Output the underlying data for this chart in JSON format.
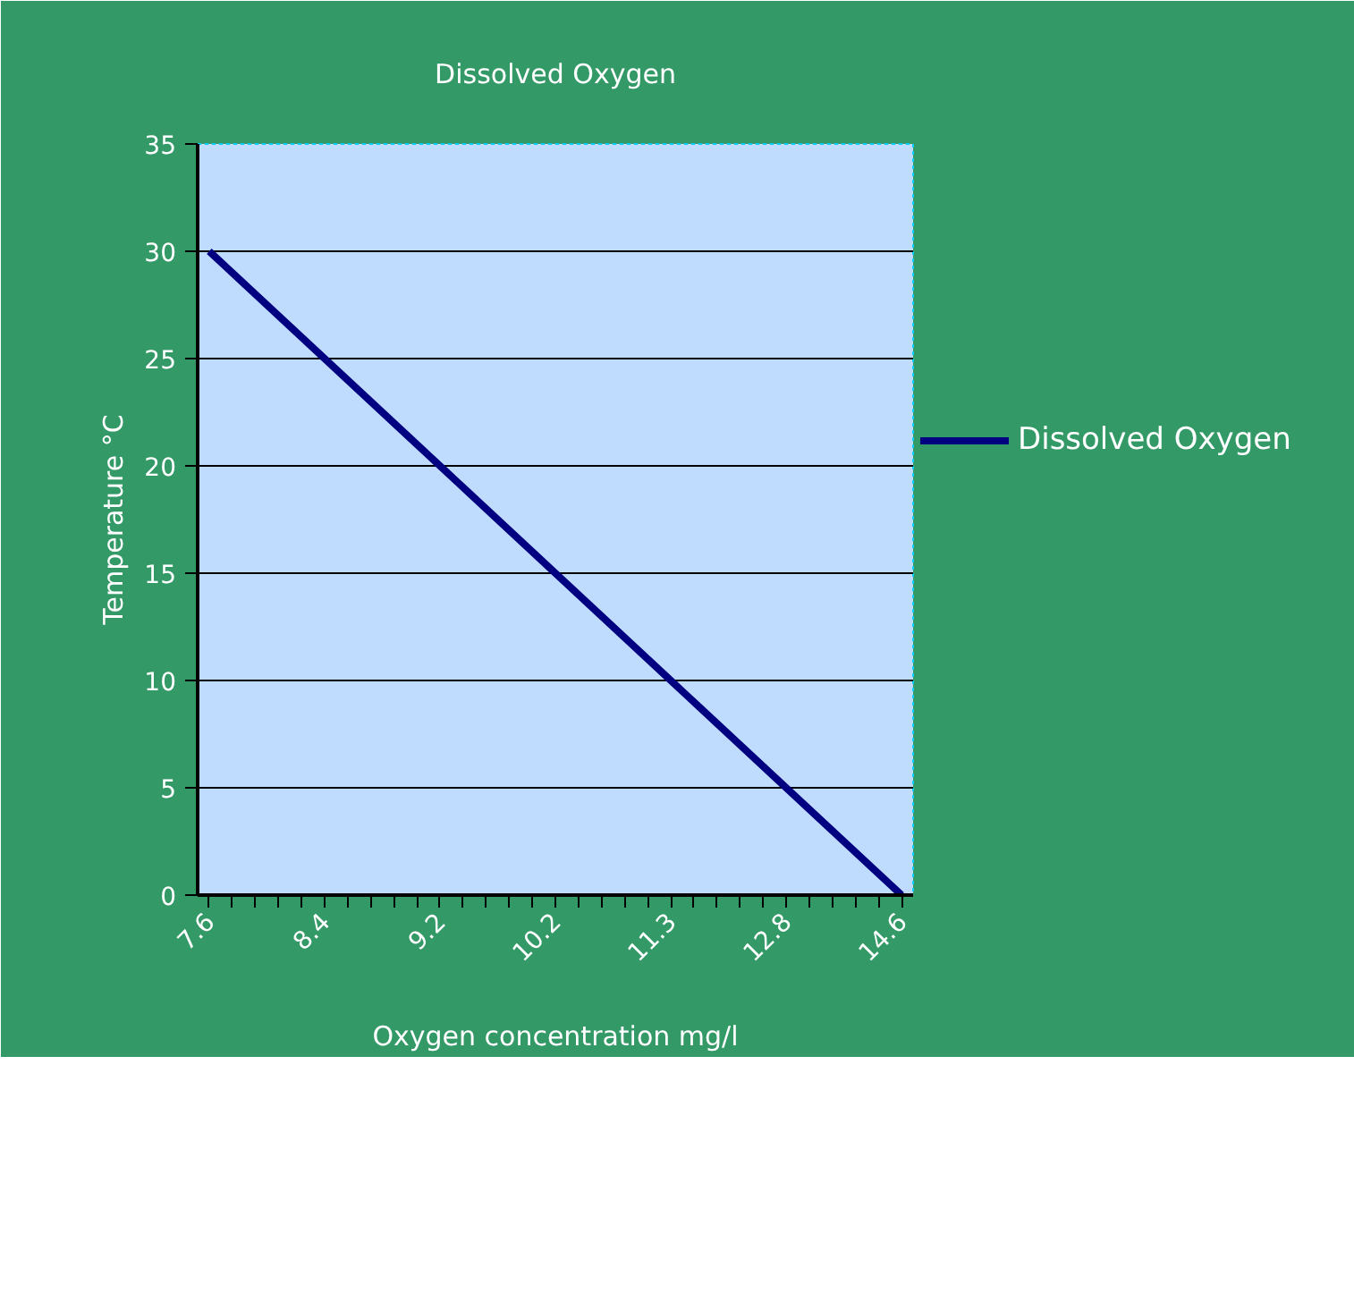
{
  "chart_data": {
    "type": "line",
    "title": "Dissolved Oxygen",
    "xlabel": "Oxygen concentration mg/l",
    "ylabel": "Temperature °C",
    "categories": [
      "7.6",
      null,
      null,
      null,
      null,
      "8.4",
      null,
      null,
      null,
      null,
      "9.2",
      null,
      null,
      null,
      null,
      "10.2",
      null,
      null,
      null,
      null,
      "11.3",
      null,
      null,
      null,
      null,
      "12.8",
      null,
      null,
      null,
      null,
      "14.6"
    ],
    "series": [
      {
        "name": "Dissolved Oxygen",
        "color": "#000080",
        "values": [
          30,
          29,
          28,
          27,
          26,
          25,
          24,
          23,
          22,
          21,
          20,
          19,
          18,
          17,
          16,
          15,
          14,
          13,
          12,
          11,
          10,
          9,
          8,
          7,
          6,
          5,
          4,
          3,
          2,
          1,
          0
        ]
      }
    ],
    "ylim": [
      0,
      35
    ],
    "yticks": [
      0,
      5,
      10,
      15,
      20,
      25,
      30,
      35
    ],
    "grid": "y",
    "legend": "right",
    "marker": "none",
    "line_style": "solid"
  }
}
